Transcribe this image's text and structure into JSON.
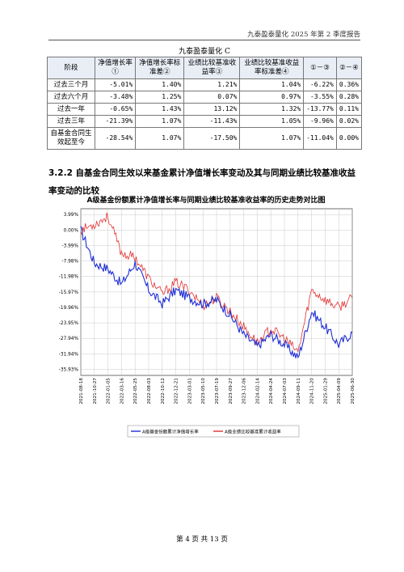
{
  "header": {
    "text": "九泰盈泰量化 2025 年第 2 季度报告"
  },
  "table": {
    "title": "九泰盈泰量化 C",
    "columns": [
      "阶段",
      "净值增长率①",
      "净值增长率标准差②",
      "业绩比较基准收益率③",
      "业绩比较基准收益率标准差④",
      "①－③",
      "②－④"
    ],
    "rows": [
      [
        "过去三个月",
        "-5.01%",
        "1.40%",
        "1.21%",
        "1.04%",
        "-6.22%",
        "0.36%"
      ],
      [
        "过去六个月",
        "-3.48%",
        "1.25%",
        "0.07%",
        "0.97%",
        "-3.55%",
        "0.28%"
      ],
      [
        "过去一年",
        "-0.65%",
        "1.43%",
        "13.12%",
        "1.32%",
        "-13.77%",
        "0.11%"
      ],
      [
        "过去三年",
        "-21.39%",
        "1.07%",
        "-11.43%",
        "1.05%",
        "-9.96%",
        "0.02%"
      ],
      [
        "自基金合同生效起至今",
        "-28.54%",
        "1.07%",
        "-17.50%",
        "1.07%",
        "-11.04%",
        "0.00%"
      ]
    ]
  },
  "section": {
    "heading": "3.2.2 自基金合同生效以来基金累计净值增长率变动及其与同期业绩比较基准收益率变动的比较"
  },
  "chart_data": {
    "type": "line",
    "title": "A级基金份额累计净值增长率与同期业绩比较基准收益率的历史走势对比图",
    "y_ticks": [
      "3.99%",
      "0.00%",
      "-3.99%",
      "-7.98%",
      "-11.98%",
      "-15.97%",
      "-19.96%",
      "-23.95%",
      "-27.94%",
      "-31.94%",
      "-35.93%"
    ],
    "ylim": [
      -37.5,
      5.5
    ],
    "x_ticks": [
      "2021-08-18",
      "2021-10-27",
      "2022-01-05",
      "2022-03-16",
      "2022-05-25",
      "2022-08-03",
      "2022-10-12",
      "2022-12-21",
      "2023-03-01",
      "2023-05-10",
      "2023-07-19",
      "2023-09-27",
      "2023-12-06",
      "2024-02-14",
      "2024-04-24",
      "2024-07-03",
      "2024-09-11",
      "2024-11-20",
      "2025-01-29",
      "2025-04-09",
      "2025-06-30"
    ],
    "grid": true,
    "legend_position": "bottom",
    "colors": {
      "fund": "#1f2ed6",
      "benchmark": "#e0312f"
    },
    "series": [
      {
        "name": "A级基金份额累计净值增长率",
        "x": [
          0,
          1,
          2,
          3,
          4,
          5,
          6,
          7,
          8,
          9,
          10,
          11,
          12,
          13,
          14,
          15,
          16,
          17,
          18,
          19,
          20
        ],
        "values": [
          0.0,
          -8.5,
          -10.0,
          -14.0,
          -8.5,
          -15.5,
          -19.0,
          -15.5,
          -17.5,
          -19.0,
          -18.0,
          -22.0,
          -27.0,
          -30.0,
          -27.0,
          -29.5,
          -33.0,
          -21.0,
          -25.0,
          -29.5,
          -26.5
        ]
      },
      {
        "name": "A级业绩比较基准累计收益率",
        "x": [
          0,
          1,
          2,
          3,
          4,
          5,
          6,
          7,
          8,
          9,
          10,
          11,
          12,
          13,
          14,
          15,
          16,
          17,
          18,
          19,
          20
        ],
        "values": [
          0.0,
          1.5,
          3.5,
          -6.0,
          -7.0,
          -12.5,
          -16.5,
          -13.5,
          -15.5,
          -19.5,
          -17.5,
          -21.0,
          -25.0,
          -29.0,
          -25.5,
          -28.0,
          -31.5,
          -15.5,
          -18.0,
          -20.0,
          -17.5
        ]
      }
    ]
  },
  "footer": {
    "text": "第 4 页 共 13 页"
  }
}
